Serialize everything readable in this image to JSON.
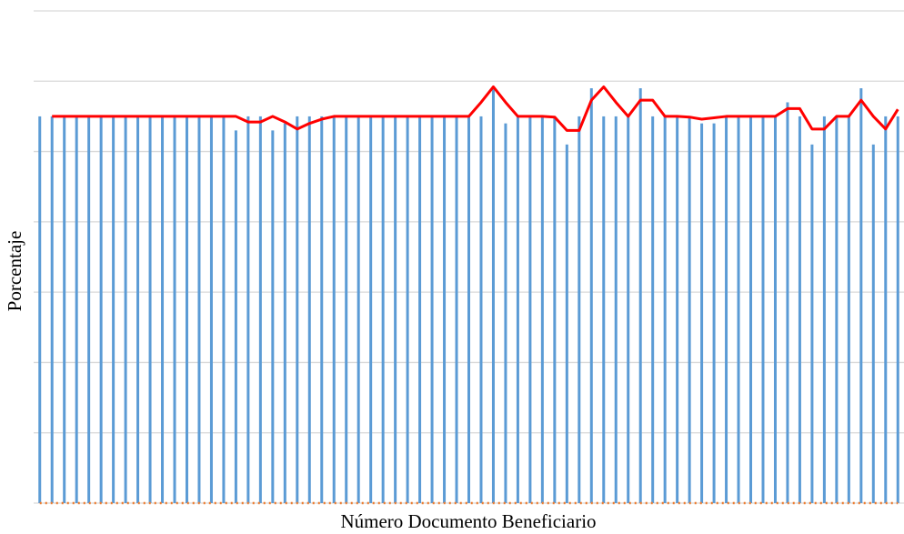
{
  "chart_data": {
    "type": "bar",
    "x_label": "Número Documento Beneficiario",
    "y_label": "Porcentaje",
    "ylim": [
      0,
      7
    ],
    "yticks": [
      0,
      1,
      2,
      3,
      4,
      5,
      6,
      7
    ],
    "ytick_labels": false,
    "grid": true,
    "series": [
      {
        "type": "bar",
        "color": "#5b9bd5",
        "values": [
          5.5,
          5.5,
          5.5,
          5.5,
          5.5,
          5.5,
          5.5,
          5.5,
          5.5,
          5.5,
          5.5,
          5.5,
          5.5,
          5.5,
          5.5,
          5.5,
          5.3,
          5.5,
          5.5,
          5.3,
          5.4,
          5.5,
          5.5,
          5.5,
          5.5,
          5.5,
          5.5,
          5.5,
          5.5,
          5.5,
          5.5,
          5.5,
          5.5,
          5.5,
          5.5,
          5.5,
          5.5,
          5.9,
          5.4,
          5.5,
          5.5,
          5.5,
          5.5,
          5.1,
          5.5,
          5.9,
          5.5,
          5.5,
          5.5,
          5.9,
          5.5,
          5.5,
          5.5,
          5.5,
          5.4,
          5.4,
          5.5,
          5.5,
          5.5,
          5.5,
          5.5,
          5.7,
          5.5,
          5.1,
          5.5,
          5.5,
          5.5,
          5.9,
          5.1,
          5.5,
          5.5
        ]
      },
      {
        "type": "line",
        "color": "#ed7d31",
        "dashed": true,
        "width": 2.5,
        "values": [
          0,
          0,
          0,
          0,
          0,
          0,
          0,
          0,
          0,
          0,
          0,
          0,
          0,
          0,
          0,
          0,
          0,
          0,
          0,
          0,
          0,
          0,
          0,
          0,
          0,
          0,
          0,
          0,
          0,
          0,
          0,
          0,
          0,
          0,
          0,
          0,
          0,
          0,
          0,
          0,
          0,
          0,
          0,
          0,
          0,
          0,
          0,
          0,
          0,
          0,
          0,
          0,
          0,
          0,
          0,
          0,
          0,
          0,
          0,
          0,
          0,
          0,
          0,
          0,
          0,
          0,
          0,
          0,
          0,
          0,
          0
        ]
      },
      {
        "type": "line",
        "color": "#ff0000",
        "dashed": false,
        "width": 3,
        "values": [
          null,
          5.5,
          5.5,
          5.5,
          5.5,
          5.5,
          5.5,
          5.5,
          5.5,
          5.5,
          5.5,
          5.5,
          5.5,
          5.5,
          5.5,
          5.5,
          5.5,
          5.42,
          5.42,
          5.5,
          5.42,
          5.32,
          5.4,
          5.46,
          5.5,
          5.5,
          5.5,
          5.5,
          5.5,
          5.5,
          5.5,
          5.5,
          5.5,
          5.5,
          5.5,
          5.5,
          5.7,
          5.92,
          5.7,
          5.5,
          5.5,
          5.5,
          5.49,
          5.3,
          5.3,
          5.73,
          5.92,
          5.7,
          5.5,
          5.73,
          5.73,
          5.5,
          5.5,
          5.49,
          5.46,
          5.48,
          5.5,
          5.5,
          5.5,
          5.5,
          5.5,
          5.61,
          5.61,
          5.32,
          5.32,
          5.5,
          5.5,
          5.73,
          5.5,
          5.32,
          5.6
        ]
      }
    ]
  }
}
